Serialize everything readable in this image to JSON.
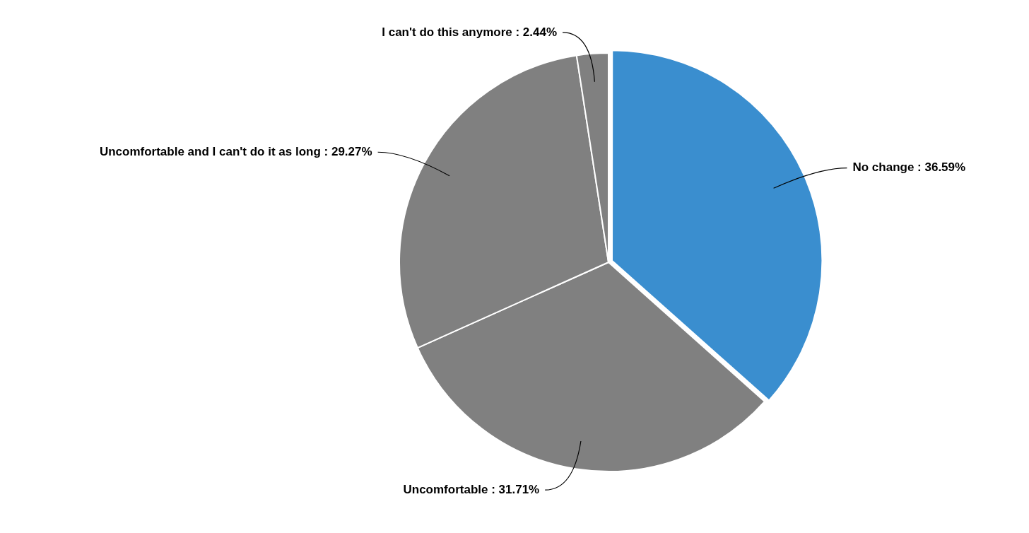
{
  "chart_data": {
    "type": "pie",
    "categories": [
      "No change",
      "Uncomfortable",
      "Uncomfortable and I can't do it as long",
      "I can't do this anymore"
    ],
    "values": [
      36.59,
      31.71,
      29.27,
      2.44
    ],
    "colors": [
      "#3a8ecf",
      "#808080",
      "#808080",
      "#808080"
    ],
    "value_labels": [
      ": 36.59%",
      ": 31.71%",
      ": 29.27%",
      ": 2.44%"
    ],
    "legend": false
  }
}
